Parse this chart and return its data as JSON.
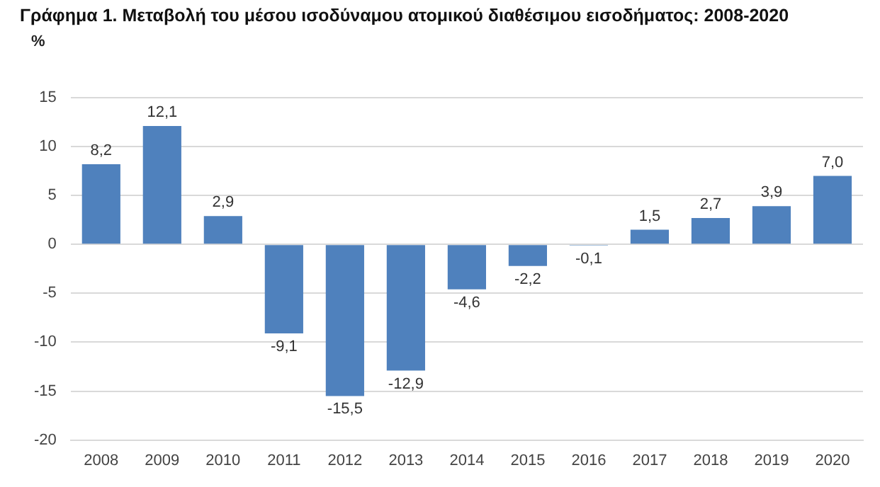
{
  "chart_data": {
    "type": "bar",
    "title": "Γράφημα 1. Μεταβολή του μέσου ισοδύναμου ατομικού διαθέσιμου εισοδήματος: 2008-2020",
    "ylabel": "%",
    "categories": [
      "2008",
      "2009",
      "2010",
      "2011",
      "2012",
      "2013",
      "2014",
      "2015",
      "2016",
      "2017",
      "2018",
      "2019",
      "2020"
    ],
    "values": [
      8.2,
      12.1,
      2.9,
      -9.1,
      -15.5,
      -12.9,
      -4.6,
      -2.2,
      -0.1,
      1.5,
      2.7,
      3.9,
      7.0
    ],
    "value_labels": [
      "8,2",
      "12,1",
      "2,9",
      "-9,1",
      "-15,5",
      "-12,9",
      "-4,6",
      "-2,2",
      "-0,1",
      "1,5",
      "2,7",
      "3,9",
      "7,0"
    ],
    "color": "#4f81bd",
    "ylim": [
      -20,
      15
    ],
    "yticks": [
      -20,
      -15,
      -10,
      -5,
      0,
      5,
      10,
      15
    ],
    "grid": "y"
  }
}
